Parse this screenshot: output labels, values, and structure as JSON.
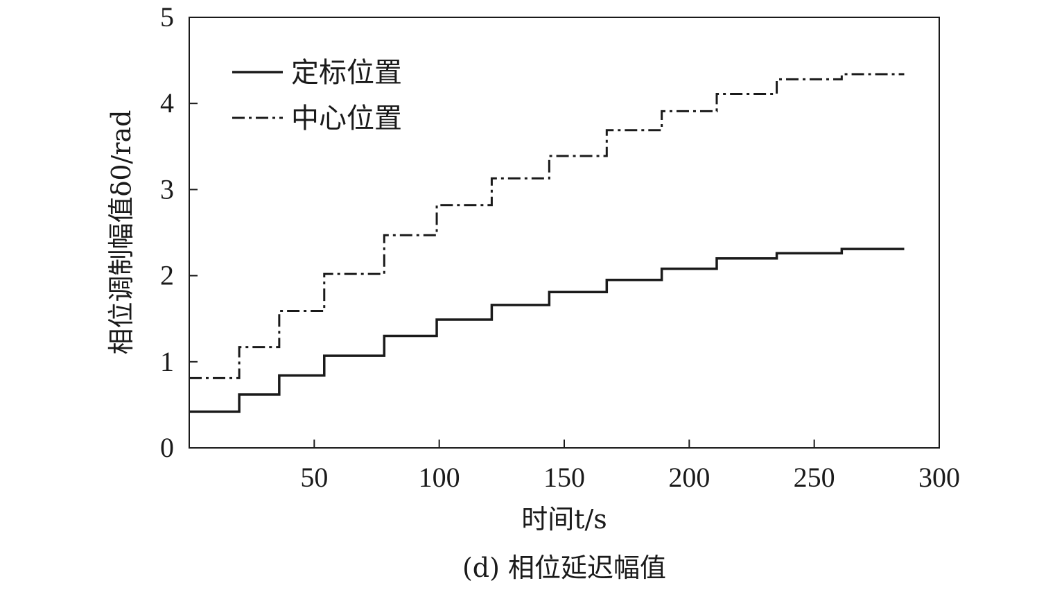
{
  "chart_data": {
    "type": "line",
    "step": true,
    "caption": "(d) 相位延迟幅值",
    "xlabel": "时间t/s",
    "ylabel": "相位调制幅值δ0/rad",
    "xlim": [
      0,
      300
    ],
    "ylim": [
      0,
      5
    ],
    "xticks": [
      50,
      100,
      150,
      200,
      250,
      300
    ],
    "yticks": [
      0,
      1,
      2,
      3,
      4,
      5
    ],
    "grid": false,
    "legend_position": "top-left",
    "series": [
      {
        "name": "定标位置",
        "line_style": "solid",
        "color": "#1a1a1a",
        "x": [
          0,
          20,
          36,
          54,
          78,
          99,
          121,
          144,
          167,
          189,
          211,
          235,
          261,
          286
        ],
        "y": [
          0.42,
          0.62,
          0.84,
          1.07,
          1.3,
          1.49,
          1.66,
          1.81,
          1.95,
          2.08,
          2.2,
          2.26,
          2.31,
          2.31
        ]
      },
      {
        "name": "中心位置",
        "line_style": "dashdot",
        "color": "#1a1a1a",
        "x": [
          0,
          20,
          36,
          54,
          78,
          99,
          121,
          144,
          167,
          189,
          211,
          235,
          261,
          286
        ],
        "y": [
          0.81,
          1.17,
          1.59,
          2.02,
          2.47,
          2.82,
          3.13,
          3.39,
          3.69,
          3.91,
          4.11,
          4.28,
          4.34,
          4.34
        ]
      }
    ]
  }
}
